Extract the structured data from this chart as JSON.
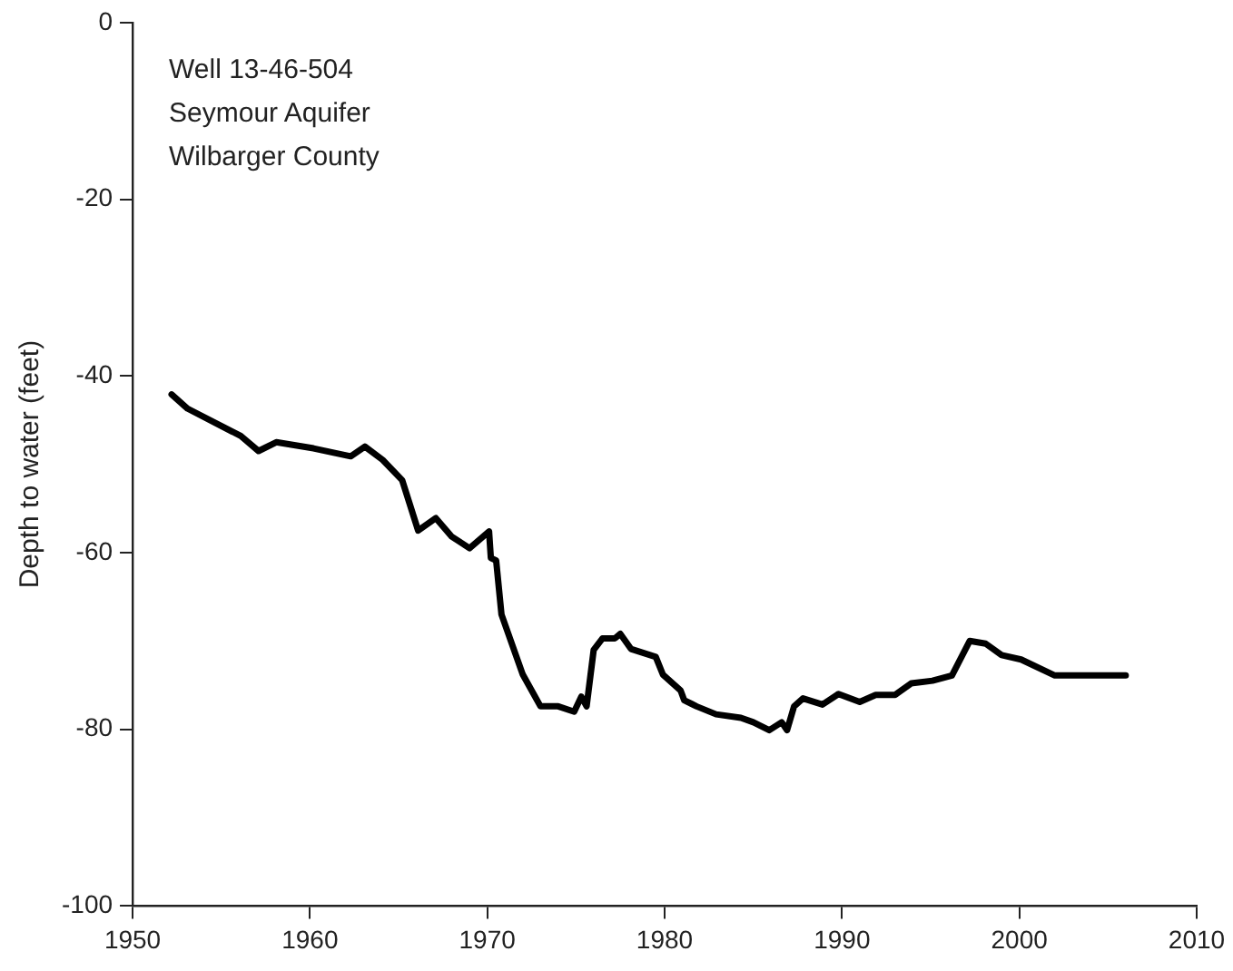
{
  "chart_data": {
    "type": "line",
    "ylabel": "Depth to water (feet)",
    "annotations": [
      "Well 13-46-504",
      "Seymour Aquifer",
      "Wilbarger County"
    ],
    "xlim": [
      1950,
      2010
    ],
    "xticks": [
      1950,
      1960,
      1970,
      1980,
      1990,
      2000,
      2010
    ],
    "ylim": [
      -100,
      0
    ],
    "yticks": [
      -100,
      -80,
      -60,
      -40,
      -20,
      0
    ],
    "grid": false,
    "legend": false,
    "marker": "none",
    "line_style": "solid",
    "series": [
      {
        "color": "#000000",
        "x": [
          1952.2,
          1953.1,
          1956.1,
          1957.1,
          1958.1,
          1960.2,
          1962.3,
          1963.1,
          1964.1,
          1965.2,
          1966.1,
          1967.1,
          1968.0,
          1969.0,
          1970.1,
          1970.2,
          1970.5,
          1970.8,
          1972.0,
          1973.0,
          1974.0,
          1974.9,
          1975.3,
          1975.6,
          1976.0,
          1976.5,
          1977.2,
          1977.5,
          1978.1,
          1979.5,
          1979.9,
          1980.9,
          1981.1,
          1981.8,
          1982.9,
          1984.3,
          1985.0,
          1985.9,
          1986.6,
          1986.9,
          1987.3,
          1987.8,
          1988.9,
          1989.8,
          1991.0,
          1991.9,
          1993.0,
          1993.9,
          1995.1,
          1996.2,
          1997.2,
          1998.1,
          1999.0,
          2000.1,
          2002.0,
          2006.0
        ],
        "values": [
          -42.1,
          -43.7,
          -46.8,
          -48.5,
          -47.5,
          -48.2,
          -49.1,
          -48.0,
          -49.5,
          -51.8,
          -57.5,
          -56.1,
          -58.2,
          -59.5,
          -57.6,
          -60.6,
          -60.9,
          -67,
          -73.8,
          -77.4,
          -77.4,
          -78,
          -76.3,
          -77.4,
          -71,
          -69.7,
          -69.7,
          -69.2,
          -70.9,
          -71.8,
          -73.8,
          -75.6,
          -76.7,
          -77.4,
          -78.3,
          -78.7,
          -79.2,
          -80.1,
          -79.2,
          -80.1,
          -77.4,
          -76.5,
          -77.2,
          -76,
          -76.9,
          -76.1,
          -76.1,
          -74.8,
          -74.5,
          -73.9,
          -70,
          -70.3,
          -71.6,
          -72.1,
          -73.9,
          -73.9
        ]
      }
    ]
  }
}
